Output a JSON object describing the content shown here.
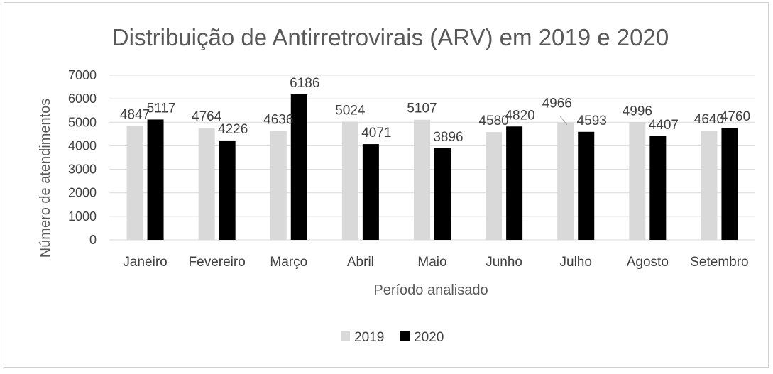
{
  "chart_data": {
    "type": "bar",
    "title": "Distribuição de Antirretrovirais (ARV) em 2019 e 2020",
    "xlabel": "Período analisado",
    "ylabel": "Número de atendimentos",
    "categories": [
      "Janeiro",
      "Fevereiro",
      "Março",
      "Abril",
      "Maio",
      "Junho",
      "Julho",
      "Agosto",
      "Setembro"
    ],
    "series": [
      {
        "name": "2019",
        "color": "#d9d9d9",
        "values": [
          4847,
          4764,
          4636,
          5024,
          5107,
          4580,
          4966,
          4996,
          4640
        ]
      },
      {
        "name": "2020",
        "color": "#000000",
        "values": [
          5117,
          4226,
          6186,
          4071,
          3896,
          4820,
          4593,
          4407,
          4760
        ]
      }
    ],
    "ylim": [
      0,
      7000
    ],
    "yticks": [
      0,
      1000,
      2000,
      3000,
      4000,
      5000,
      6000,
      7000
    ],
    "grid": true,
    "legend_position": "bottom"
  }
}
